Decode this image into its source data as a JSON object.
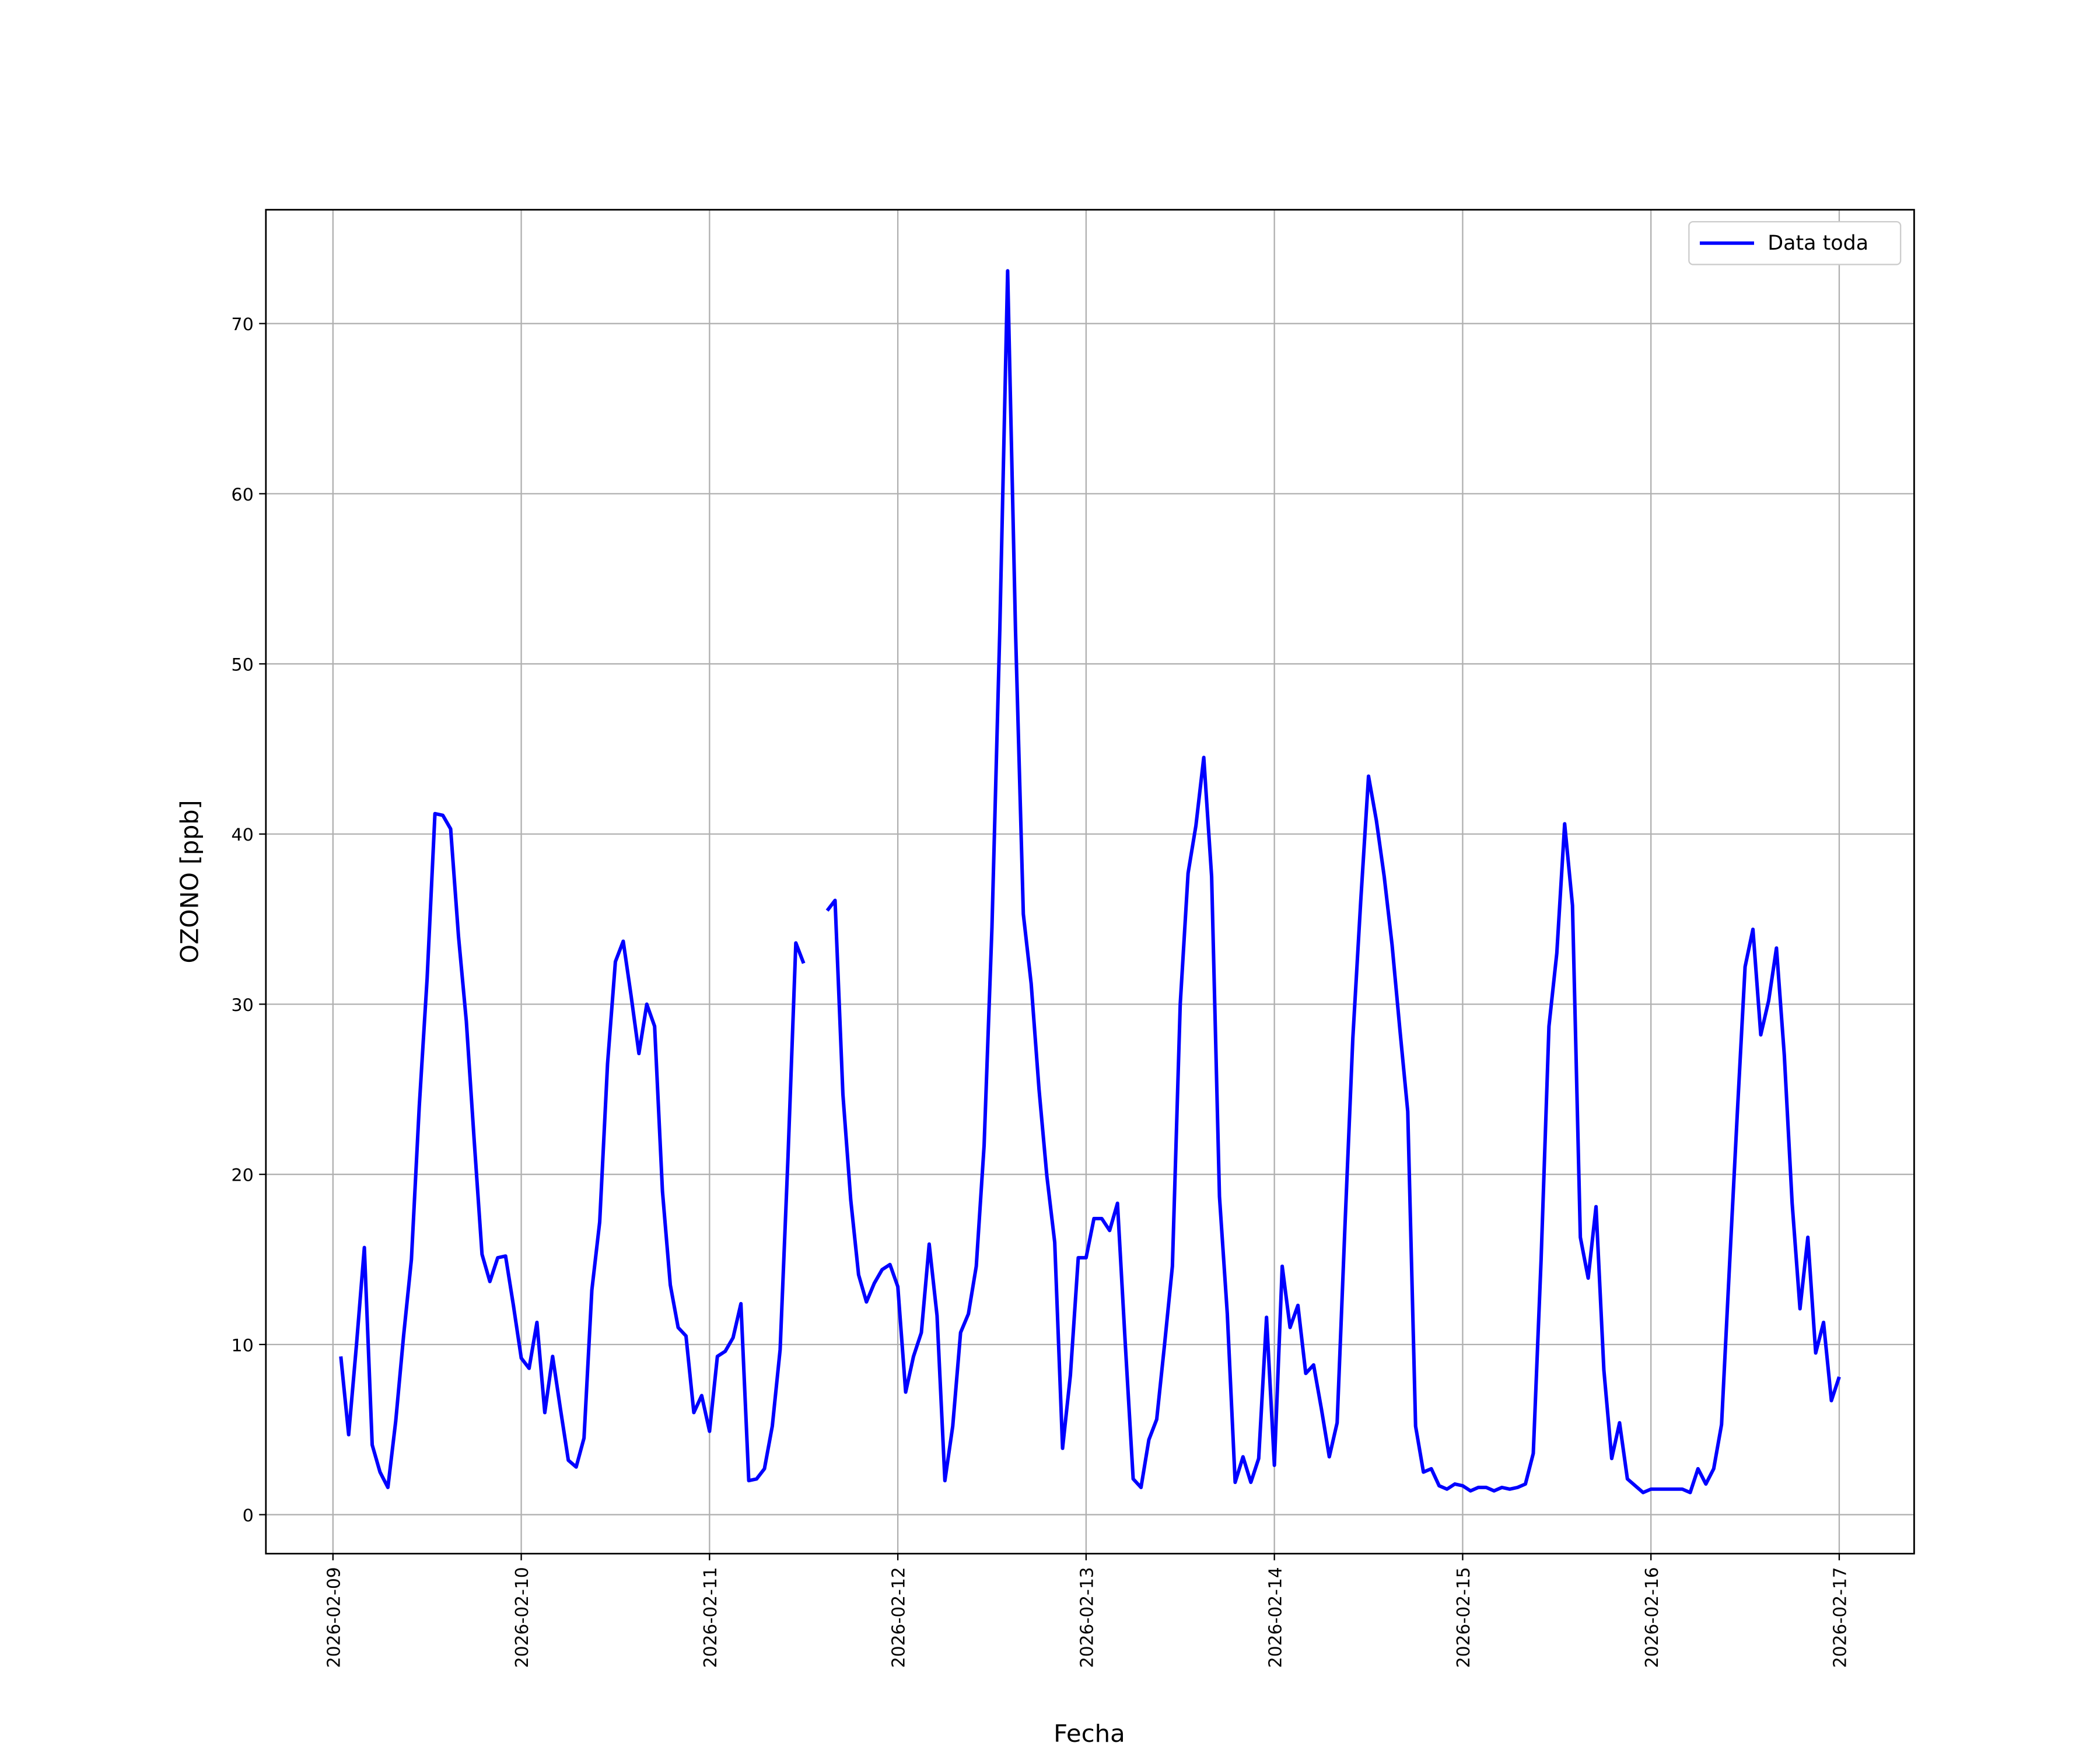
{
  "chart_data": {
    "type": "line",
    "xlabel": "Fecha",
    "ylabel": "OZONO [ppb]",
    "x": [
      "2026-02-09T01:00",
      "2026-02-09T02:00",
      "2026-02-09T03:00",
      "2026-02-09T04:00",
      "2026-02-09T05:00",
      "2026-02-09T06:00",
      "2026-02-09T07:00",
      "2026-02-09T08:00",
      "2026-02-09T09:00",
      "2026-02-09T10:00",
      "2026-02-09T11:00",
      "2026-02-09T12:00",
      "2026-02-09T13:00",
      "2026-02-09T14:00",
      "2026-02-09T15:00",
      "2026-02-09T16:00",
      "2026-02-09T17:00",
      "2026-02-09T18:00",
      "2026-02-09T19:00",
      "2026-02-09T20:00",
      "2026-02-09T21:00",
      "2026-02-09T22:00",
      "2026-02-09T23:00",
      "2026-02-10T00:00",
      "2026-02-10T01:00",
      "2026-02-10T02:00",
      "2026-02-10T03:00",
      "2026-02-10T04:00",
      "2026-02-10T05:00",
      "2026-02-10T06:00",
      "2026-02-10T07:00",
      "2026-02-10T08:00",
      "2026-02-10T09:00",
      "2026-02-10T10:00",
      "2026-02-10T11:00",
      "2026-02-10T12:00",
      "2026-02-10T13:00",
      "2026-02-10T14:00",
      "2026-02-10T15:00",
      "2026-02-10T16:00",
      "2026-02-10T17:00",
      "2026-02-10T18:00",
      "2026-02-10T19:00",
      "2026-02-10T20:00",
      "2026-02-10T21:00",
      "2026-02-10T22:00",
      "2026-02-10T23:00",
      "2026-02-11T00:00",
      "2026-02-11T01:00",
      "2026-02-11T02:00",
      "2026-02-11T03:00",
      "2026-02-11T04:00",
      "2026-02-11T05:00",
      "2026-02-11T06:00",
      "2026-02-11T07:00",
      "2026-02-11T08:00",
      "2026-02-11T09:00",
      "2026-02-11T10:00",
      "2026-02-11T11:00",
      "2026-02-11T12:00",
      "2026-02-11T13:00",
      "2026-02-11T14:00",
      "2026-02-11T15:00",
      "2026-02-11T16:00",
      "2026-02-11T17:00",
      "2026-02-11T18:00",
      "2026-02-11T19:00",
      "2026-02-11T20:00",
      "2026-02-11T21:00",
      "2026-02-11T22:00",
      "2026-02-11T23:00",
      "2026-02-12T00:00",
      "2026-02-12T01:00",
      "2026-02-12T02:00",
      "2026-02-12T03:00",
      "2026-02-12T04:00",
      "2026-02-12T05:00",
      "2026-02-12T06:00",
      "2026-02-12T07:00",
      "2026-02-12T08:00",
      "2026-02-12T09:00",
      "2026-02-12T10:00",
      "2026-02-12T11:00",
      "2026-02-12T12:00",
      "2026-02-12T13:00",
      "2026-02-12T14:00",
      "2026-02-12T15:00",
      "2026-02-12T16:00",
      "2026-02-12T17:00",
      "2026-02-12T18:00",
      "2026-02-12T19:00",
      "2026-02-12T20:00",
      "2026-02-12T21:00",
      "2026-02-12T22:00",
      "2026-02-12T23:00",
      "2026-02-13T00:00",
      "2026-02-13T01:00",
      "2026-02-13T02:00",
      "2026-02-13T03:00",
      "2026-02-13T04:00",
      "2026-02-13T05:00",
      "2026-02-13T06:00",
      "2026-02-13T07:00",
      "2026-02-13T08:00",
      "2026-02-13T09:00",
      "2026-02-13T10:00",
      "2026-02-13T11:00",
      "2026-02-13T12:00",
      "2026-02-13T13:00",
      "2026-02-13T14:00",
      "2026-02-13T15:00",
      "2026-02-13T16:00",
      "2026-02-13T17:00",
      "2026-02-13T18:00",
      "2026-02-13T19:00",
      "2026-02-13T20:00",
      "2026-02-13T21:00",
      "2026-02-13T22:00",
      "2026-02-13T23:00",
      "2026-02-14T00:00",
      "2026-02-14T01:00",
      "2026-02-14T02:00",
      "2026-02-14T03:00",
      "2026-02-14T04:00",
      "2026-02-14T05:00",
      "2026-02-14T06:00",
      "2026-02-14T07:00",
      "2026-02-14T08:00",
      "2026-02-14T09:00",
      "2026-02-14T10:00",
      "2026-02-14T11:00",
      "2026-02-14T12:00",
      "2026-02-14T13:00",
      "2026-02-14T14:00",
      "2026-02-14T15:00",
      "2026-02-14T16:00",
      "2026-02-14T17:00",
      "2026-02-14T18:00",
      "2026-02-14T19:00",
      "2026-02-14T20:00",
      "2026-02-14T21:00",
      "2026-02-14T22:00",
      "2026-02-14T23:00",
      "2026-02-15T00:00",
      "2026-02-15T01:00",
      "2026-02-15T02:00",
      "2026-02-15T03:00",
      "2026-02-15T04:00",
      "2026-02-15T05:00",
      "2026-02-15T06:00",
      "2026-02-15T07:00",
      "2026-02-15T08:00",
      "2026-02-15T09:00",
      "2026-02-15T10:00",
      "2026-02-15T11:00",
      "2026-02-15T12:00",
      "2026-02-15T13:00",
      "2026-02-15T14:00",
      "2026-02-15T15:00",
      "2026-02-15T16:00",
      "2026-02-15T17:00",
      "2026-02-15T18:00",
      "2026-02-15T19:00",
      "2026-02-15T20:00",
      "2026-02-15T21:00",
      "2026-02-15T22:00",
      "2026-02-15T23:00",
      "2026-02-16T00:00",
      "2026-02-16T01:00",
      "2026-02-16T02:00",
      "2026-02-16T03:00",
      "2026-02-16T04:00",
      "2026-02-16T05:00",
      "2026-02-16T06:00",
      "2026-02-16T07:00",
      "2026-02-16T08:00",
      "2026-02-16T09:00",
      "2026-02-16T10:00",
      "2026-02-16T11:00",
      "2026-02-16T12:00",
      "2026-02-16T13:00",
      "2026-02-16T14:00",
      "2026-02-16T15:00",
      "2026-02-16T16:00",
      "2026-02-16T17:00",
      "2026-02-16T18:00",
      "2026-02-16T19:00",
      "2026-02-16T20:00",
      "2026-02-16T21:00",
      "2026-02-16T22:00",
      "2026-02-16T23:00",
      "2026-02-17T00:00"
    ],
    "series": [
      {
        "name": "Data toda",
        "color": "#0000ff",
        "values": [
          9.3,
          4.7,
          10,
          15.7,
          4.1,
          2.5,
          1.6,
          5.5,
          10.5,
          15,
          24,
          31.5,
          41.2,
          41.1,
          40.3,
          34,
          29,
          22,
          15.3,
          13.7,
          15.1,
          15.2,
          12.3,
          9.2,
          8.6,
          11.3,
          6,
          9.3,
          6.2,
          3.2,
          2.8,
          4.5,
          13.2,
          17.2,
          26.5,
          32.5,
          33.7,
          30.5,
          27.1,
          30,
          28.7,
          19,
          13.5,
          11,
          10.5,
          6,
          7,
          4.9,
          9.3,
          9.6,
          10.4,
          12.4,
          2,
          2.1,
          2.7,
          5.2,
          9.7,
          21,
          33.6,
          32.4,
          null,
          null,
          35.5,
          36.1,
          24.7,
          18.5,
          14.1,
          12.5,
          13.6,
          14.4,
          14.7,
          13.4,
          7.2,
          9.3,
          10.7,
          15.9,
          11.7,
          2,
          5.2,
          10.7,
          11.8,
          14.6,
          21.7,
          34.5,
          52,
          73.1,
          52,
          35.3,
          31.2,
          25,
          19.9,
          16,
          3.9,
          8.2,
          15.1,
          15.1,
          17.4,
          17.4,
          16.7,
          18.3,
          10,
          2.1,
          1.6,
          4.4,
          5.6,
          10,
          14.6,
          30,
          37.7,
          40.5,
          44.5,
          37.5,
          18.7,
          11.8,
          1.9,
          3.4,
          1.9,
          3.3,
          11.6,
          2.9,
          14.6,
          11,
          12.3,
          8.3,
          8.8,
          6.2,
          3.4,
          5.4,
          17,
          28,
          36,
          43.4,
          40.8,
          37.5,
          33.5,
          28.5,
          23.7,
          5.2,
          2.5,
          2.7,
          1.7,
          1.5,
          1.8,
          1.7,
          1.4,
          1.6,
          1.6,
          1.4,
          1.6,
          1.5,
          1.6,
          1.8,
          3.6,
          15,
          28.7,
          33,
          40.6,
          35.8,
          16.3,
          13.9,
          18.1,
          8.5,
          3.3,
          5.4,
          2.1,
          1.7,
          1.3,
          1.5,
          1.5,
          1.5,
          1.5,
          1.5,
          1.3,
          2.7,
          1.8,
          2.7,
          5.3,
          14.5,
          23.5,
          32.2,
          34.4,
          28.2,
          30.2,
          33.3,
          27,
          18.3,
          12.1,
          16.3,
          9.5,
          11.3,
          6.7,
          8.1
        ]
      }
    ],
    "xlim": [
      "2026-02-08T15:27",
      "2026-02-17T09:33"
    ],
    "xticks": [
      "2026-02-09",
      "2026-02-10",
      "2026-02-11",
      "2026-02-12",
      "2026-02-13",
      "2026-02-14",
      "2026-02-15",
      "2026-02-16",
      "2026-02-17"
    ],
    "ylim": [
      -2.29,
      76.69
    ],
    "yticks": [
      0,
      10,
      20,
      30,
      40,
      50,
      60,
      70
    ],
    "grid": true,
    "legend": "upper right"
  }
}
